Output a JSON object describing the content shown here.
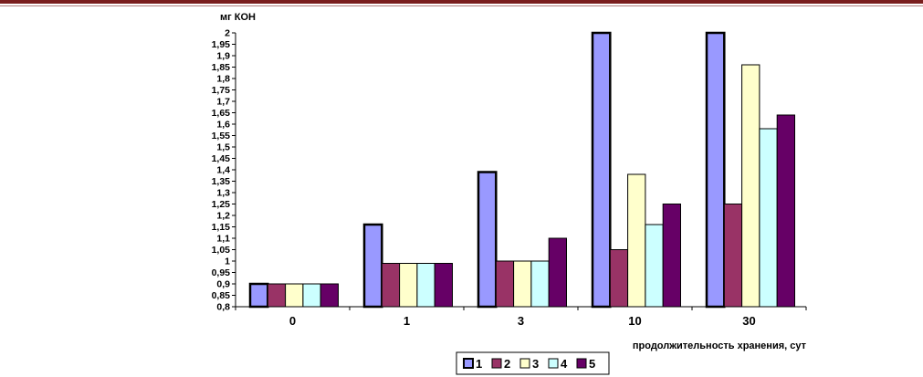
{
  "chart_data": {
    "type": "bar",
    "ylabel": "мг КОН",
    "xlabel": "продолжительность хранения, сут",
    "categories": [
      "0",
      "1",
      "3",
      "10",
      "30"
    ],
    "ylim": [
      0.8,
      2
    ],
    "yticks": [
      "2",
      "1,95",
      "1,9",
      "1,85",
      "1,8",
      "1,75",
      "1,7",
      "1,65",
      "1,6",
      "1,55",
      "1,5",
      "1,45",
      "1,4",
      "1,35",
      "1,3",
      "1,25",
      "1,2",
      "1,15",
      "1,1",
      "1,05",
      "1",
      "0,95",
      "0,9",
      "0,85",
      "0,8"
    ],
    "grid": false,
    "legend_position": "bottom",
    "series": [
      {
        "name": "1",
        "color": "#9999ff",
        "values": [
          0.9,
          1.16,
          1.39,
          2.0,
          2.0
        ]
      },
      {
        "name": "2",
        "color": "#993366",
        "values": [
          0.9,
          0.99,
          1.0,
          1.05,
          1.25
        ]
      },
      {
        "name": "3",
        "color": "#ffffcc",
        "values": [
          0.9,
          0.99,
          1.0,
          1.38,
          1.86
        ]
      },
      {
        "name": "4",
        "color": "#ccffff",
        "values": [
          0.9,
          0.99,
          1.0,
          1.16,
          1.58
        ]
      },
      {
        "name": "5",
        "color": "#660066",
        "values": [
          0.9,
          0.99,
          1.1,
          1.25,
          1.64
        ]
      }
    ]
  }
}
